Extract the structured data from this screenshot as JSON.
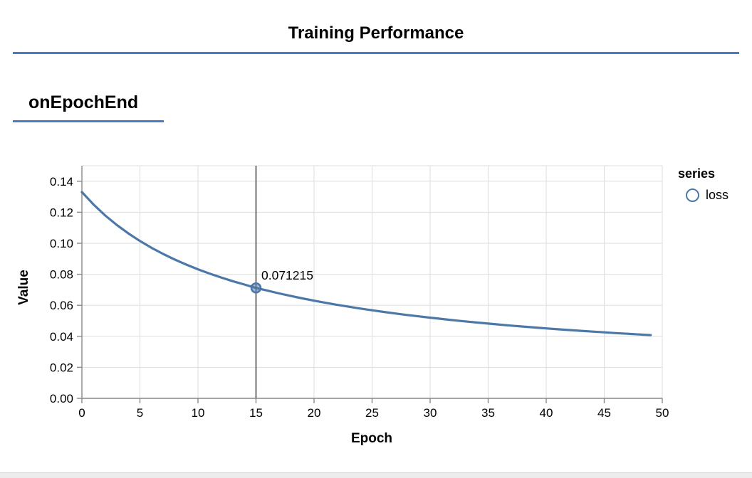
{
  "header": {
    "title": "Training Performance"
  },
  "section": {
    "title": "onEpochEnd"
  },
  "colors": {
    "accent_rule": "#4a7bc9",
    "series": "#4c78a8",
    "series_fill": "rgba(76,120,168,0.5)",
    "grid": "#dddddd",
    "axis": "#888888",
    "cursor": "#616161",
    "bottom_bar": "#ececec"
  },
  "chart_data": {
    "type": "line",
    "title": "",
    "xlabel": "Epoch",
    "ylabel": "Value",
    "xlim": [
      0,
      50
    ],
    "ylim": [
      0,
      0.15
    ],
    "x_ticks": [
      0,
      5,
      10,
      15,
      20,
      25,
      30,
      35,
      40,
      45,
      50
    ],
    "y_ticks": [
      0,
      0.02,
      0.04,
      0.06,
      0.08,
      0.1,
      0.12,
      0.14
    ],
    "grid": true,
    "legend": {
      "title": "series",
      "position": "right",
      "entries": [
        {
          "label": "loss",
          "symbol": "circle"
        }
      ]
    },
    "series": [
      {
        "name": "loss",
        "x": [
          0,
          1,
          2,
          3,
          4,
          5,
          6,
          7,
          8,
          9,
          10,
          11,
          12,
          13,
          14,
          15,
          16,
          17,
          18,
          19,
          20,
          21,
          22,
          23,
          24,
          25,
          26,
          27,
          28,
          29,
          30,
          31,
          32,
          33,
          34,
          35,
          36,
          37,
          38,
          39,
          40,
          41,
          42,
          43,
          44,
          45,
          46,
          47,
          48,
          49
        ],
        "values": [
          0.133029,
          0.125,
          0.117994,
          0.111826,
          0.106356,
          0.101471,
          0.097081,
          0.093116,
          0.089516,
          0.086233,
          0.083228,
          0.080466,
          0.077918,
          0.075562,
          0.073375,
          0.071215,
          0.069444,
          0.067671,
          0.066009,
          0.06445,
          0.062982,
          0.061599,
          0.060294,
          0.05906,
          0.057891,
          0.056783,
          0.05573,
          0.05473,
          0.053777,
          0.052869,
          0.052003,
          0.051174,
          0.050383,
          0.049625,
          0.048899,
          0.048203,
          0.047535,
          0.046893,
          0.046277,
          0.045683,
          0.045112,
          0.044561,
          0.044031,
          0.043519,
          0.043025,
          0.042547,
          0.042085,
          0.041639,
          0.041207,
          0.040789
        ]
      }
    ],
    "cursor": {
      "x": 15,
      "value": 0.071215,
      "label": "0.071215"
    }
  }
}
